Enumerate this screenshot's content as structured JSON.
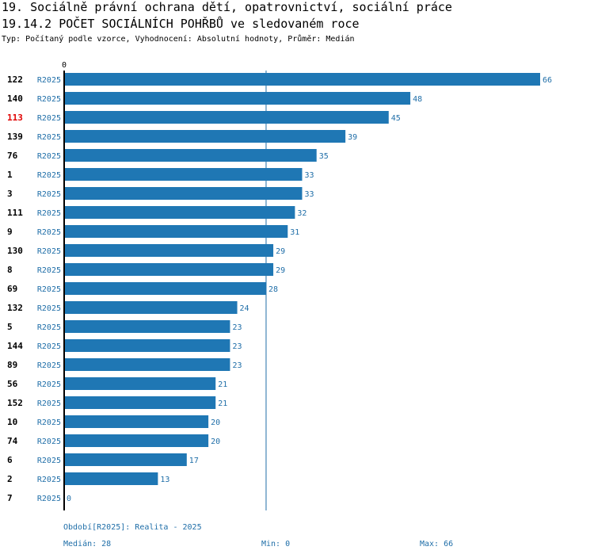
{
  "header": {
    "title": "19. Sociálně právní ochrana dětí, opatrovnictví, sociální práce",
    "subtitle": "19.14.2 POČET SOCIÁLNÍCH POHŘBŮ ve sledovaném roce",
    "info": "Typ: Počítaný podle vzorce, Vyhodnocení: Absolutní hodnoty, Průměr: Medián"
  },
  "colors": {
    "bar": "#1f77b4",
    "label": "#1f6ea8",
    "highlight": "#e00000",
    "axis": "#000000",
    "median_line": "#1f6ea8"
  },
  "chart_data": {
    "type": "bar",
    "orientation": "horizontal",
    "axis_zero_label": "0",
    "xlim": [
      0,
      66
    ],
    "median": 28,
    "highlight_category": "113",
    "categories": [
      "122",
      "140",
      "113",
      "139",
      "76",
      "1",
      "3",
      "111",
      "9",
      "130",
      "8",
      "69",
      "132",
      "5",
      "144",
      "89",
      "56",
      "152",
      "10",
      "74",
      "6",
      "2",
      "7"
    ],
    "series_labels": [
      "R2025",
      "R2025",
      "R2025",
      "R2025",
      "R2025",
      "R2025",
      "R2025",
      "R2025",
      "R2025",
      "R2025",
      "R2025",
      "R2025",
      "R2025",
      "R2025",
      "R2025",
      "R2025",
      "R2025",
      "R2025",
      "R2025",
      "R2025",
      "R2025",
      "R2025",
      "R2025"
    ],
    "values": [
      66,
      48,
      45,
      39,
      35,
      33,
      33,
      32,
      31,
      29,
      29,
      28,
      24,
      23,
      23,
      23,
      21,
      21,
      20,
      20,
      17,
      13,
      0
    ]
  },
  "footer": {
    "period": "Období[R2025]: Realita - 2025",
    "median": "Medián: 28",
    "min": "Min: 0",
    "max": "Max: 66"
  }
}
